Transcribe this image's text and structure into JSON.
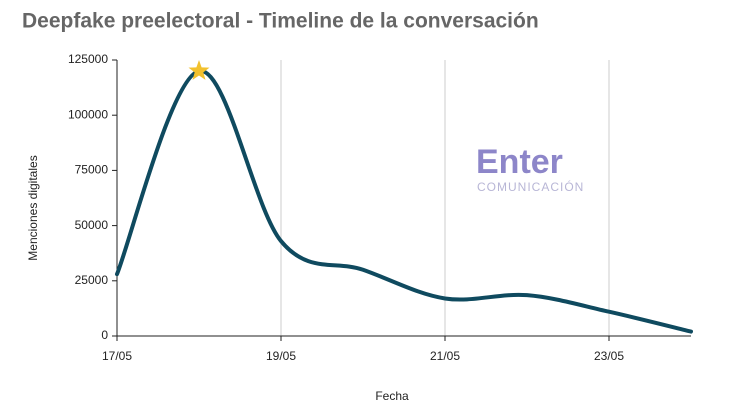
{
  "chart_data": {
    "type": "line",
    "title": "Deepfake preelectoral - Timeline de la conversación",
    "x_label": "Fecha",
    "y_label": "Menciones digitales",
    "categories": [
      "17/05",
      null,
      "19/05",
      null,
      "21/05",
      null,
      "23/05",
      null
    ],
    "series": [
      {
        "name": "Menciones",
        "color": "#0f4a5f",
        "values": [
          28000,
          120000,
          43000,
          30000,
          17000,
          18500,
          11000,
          2000
        ]
      }
    ],
    "ylim": [
      0,
      125000
    ],
    "yticks": [
      0,
      25000,
      50000,
      75000,
      100000,
      125000
    ],
    "grid": "x",
    "smooth": true,
    "marker": {
      "index": 1,
      "shape": "star",
      "color": "#f2c12e"
    }
  },
  "watermark": {
    "title": "Enter",
    "subtitle": "COMUNICACIÓN"
  }
}
